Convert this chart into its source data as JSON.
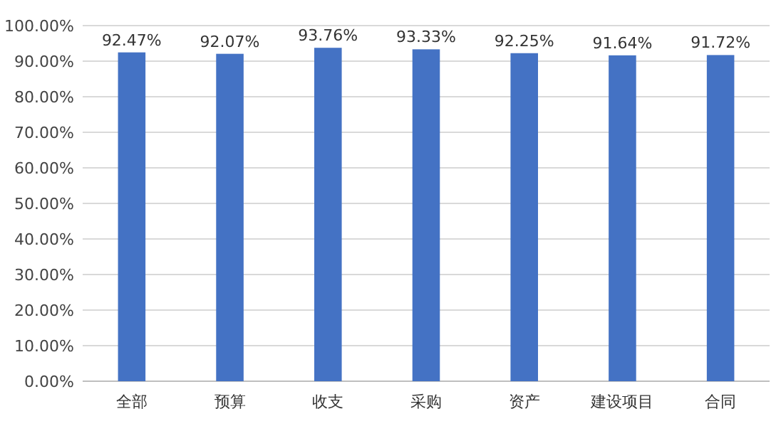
{
  "chart_data": {
    "type": "bar",
    "categories": [
      "全部",
      "预算",
      "收支",
      "采购",
      "资产",
      "建设项目",
      "合同"
    ],
    "values": [
      92.47,
      92.07,
      93.76,
      93.33,
      92.25,
      91.64,
      91.72
    ],
    "value_labels": [
      "92.47%",
      "92.07%",
      "93.76%",
      "93.33%",
      "92.25%",
      "91.64%",
      "91.72%"
    ],
    "color": "#4472c4",
    "ylim": [
      0,
      100
    ],
    "yticks": [
      {
        "value": 0,
        "label": "0.00%"
      },
      {
        "value": 10,
        "label": "10.00%"
      },
      {
        "value": 20,
        "label": "20.00%"
      },
      {
        "value": 30,
        "label": "30.00%"
      },
      {
        "value": 40,
        "label": "40.00%"
      },
      {
        "value": 50,
        "label": "50.00%"
      },
      {
        "value": 60,
        "label": "60.00%"
      },
      {
        "value": 70,
        "label": "70.00%"
      },
      {
        "value": 80,
        "label": "80.00%"
      },
      {
        "value": 90,
        "label": "90.00%"
      },
      {
        "value": 100,
        "label": "100.00%"
      }
    ],
    "grid": "y"
  }
}
